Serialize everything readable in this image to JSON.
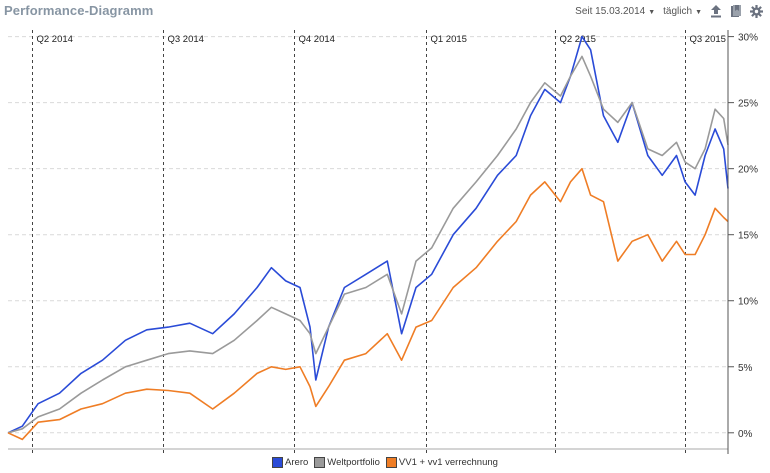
{
  "header": {
    "title": "Performance-Diagramm",
    "since_label": "Seit 15.03.2014",
    "interval_label": "täglich",
    "upload_icon": "upload-icon",
    "bookmark_icon": "bookmark-icon",
    "gear_icon": "gear-icon"
  },
  "colors": {
    "Arero": "#2a4bd7",
    "Weltportfolio": "#9a9a9a",
    "VV1 + vv1 verrechnung": "#ef7d25"
  },
  "chart_data": {
    "type": "line",
    "title": "",
    "xlabel": "",
    "ylabel": "",
    "ylim": [
      -0.01,
      0.305
    ],
    "y_ticks": [
      "0%",
      "5%",
      "10%",
      "15%",
      "20%",
      "25%",
      "30%"
    ],
    "y_tick_values": [
      0,
      0.05,
      0.1,
      0.15,
      0.2,
      0.25,
      0.3
    ],
    "x_start": "2014-03-15",
    "x_end": "2015-07-31",
    "quarter_markers": [
      {
        "label": "Q2 2014",
        "date": "2014-04-01"
      },
      {
        "label": "Q3 2014",
        "date": "2014-07-01"
      },
      {
        "label": "Q4 2014",
        "date": "2014-10-01"
      },
      {
        "label": "Q1 2015",
        "date": "2015-01-01"
      },
      {
        "label": "Q2 2015",
        "date": "2015-04-01"
      },
      {
        "label": "Q3 2015",
        "date": "2015-07-01"
      }
    ],
    "legend_position": "bottom-center",
    "series": [
      {
        "name": "Arero",
        "color": "#2a4bd7",
        "points": [
          [
            "2014-03-15",
            0.0
          ],
          [
            "2014-03-25",
            0.005
          ],
          [
            "2014-04-05",
            0.022
          ],
          [
            "2014-04-20",
            0.03
          ],
          [
            "2014-05-05",
            0.045
          ],
          [
            "2014-05-20",
            0.055
          ],
          [
            "2014-06-05",
            0.07
          ],
          [
            "2014-06-20",
            0.078
          ],
          [
            "2014-07-05",
            0.08
          ],
          [
            "2014-07-20",
            0.083
          ],
          [
            "2014-08-05",
            0.075
          ],
          [
            "2014-08-20",
            0.09
          ],
          [
            "2014-09-05",
            0.11
          ],
          [
            "2014-09-15",
            0.125
          ],
          [
            "2014-09-25",
            0.115
          ],
          [
            "2014-10-05",
            0.11
          ],
          [
            "2014-10-12",
            0.08
          ],
          [
            "2014-10-16",
            0.04
          ],
          [
            "2014-10-25",
            0.08
          ],
          [
            "2014-11-05",
            0.11
          ],
          [
            "2014-11-20",
            0.12
          ],
          [
            "2014-12-05",
            0.13
          ],
          [
            "2014-12-15",
            0.075
          ],
          [
            "2014-12-25",
            0.11
          ],
          [
            "2015-01-05",
            0.12
          ],
          [
            "2015-01-20",
            0.15
          ],
          [
            "2015-02-05",
            0.17
          ],
          [
            "2015-02-20",
            0.195
          ],
          [
            "2015-03-05",
            0.21
          ],
          [
            "2015-03-15",
            0.24
          ],
          [
            "2015-03-25",
            0.26
          ],
          [
            "2015-04-05",
            0.25
          ],
          [
            "2015-04-12",
            0.27
          ],
          [
            "2015-04-20",
            0.3
          ],
          [
            "2015-04-26",
            0.29
          ],
          [
            "2015-05-05",
            0.24
          ],
          [
            "2015-05-15",
            0.22
          ],
          [
            "2015-05-25",
            0.25
          ],
          [
            "2015-06-05",
            0.21
          ],
          [
            "2015-06-15",
            0.195
          ],
          [
            "2015-06-25",
            0.21
          ],
          [
            "2015-07-01",
            0.19
          ],
          [
            "2015-07-08",
            0.18
          ],
          [
            "2015-07-15",
            0.21
          ],
          [
            "2015-07-22",
            0.23
          ],
          [
            "2015-07-28",
            0.215
          ],
          [
            "2015-07-31",
            0.185
          ]
        ]
      },
      {
        "name": "Weltportfolio",
        "color": "#9a9a9a",
        "points": [
          [
            "2014-03-15",
            0.0
          ],
          [
            "2014-03-25",
            0.003
          ],
          [
            "2014-04-05",
            0.012
          ],
          [
            "2014-04-20",
            0.018
          ],
          [
            "2014-05-05",
            0.03
          ],
          [
            "2014-05-20",
            0.04
          ],
          [
            "2014-06-05",
            0.05
          ],
          [
            "2014-06-20",
            0.055
          ],
          [
            "2014-07-05",
            0.06
          ],
          [
            "2014-07-20",
            0.062
          ],
          [
            "2014-08-05",
            0.06
          ],
          [
            "2014-08-20",
            0.07
          ],
          [
            "2014-09-05",
            0.085
          ],
          [
            "2014-09-15",
            0.095
          ],
          [
            "2014-09-25",
            0.09
          ],
          [
            "2014-10-05",
            0.085
          ],
          [
            "2014-10-12",
            0.075
          ],
          [
            "2014-10-16",
            0.06
          ],
          [
            "2014-10-25",
            0.08
          ],
          [
            "2014-11-05",
            0.105
          ],
          [
            "2014-11-20",
            0.11
          ],
          [
            "2014-12-05",
            0.12
          ],
          [
            "2014-12-15",
            0.09
          ],
          [
            "2014-12-25",
            0.13
          ],
          [
            "2015-01-05",
            0.14
          ],
          [
            "2015-01-20",
            0.17
          ],
          [
            "2015-02-05",
            0.19
          ],
          [
            "2015-02-20",
            0.21
          ],
          [
            "2015-03-05",
            0.23
          ],
          [
            "2015-03-15",
            0.25
          ],
          [
            "2015-03-25",
            0.265
          ],
          [
            "2015-04-05",
            0.255
          ],
          [
            "2015-04-12",
            0.27
          ],
          [
            "2015-04-20",
            0.285
          ],
          [
            "2015-04-26",
            0.27
          ],
          [
            "2015-05-05",
            0.245
          ],
          [
            "2015-05-15",
            0.235
          ],
          [
            "2015-05-25",
            0.25
          ],
          [
            "2015-06-05",
            0.215
          ],
          [
            "2015-06-15",
            0.21
          ],
          [
            "2015-06-25",
            0.22
          ],
          [
            "2015-07-01",
            0.205
          ],
          [
            "2015-07-08",
            0.2
          ],
          [
            "2015-07-15",
            0.215
          ],
          [
            "2015-07-22",
            0.245
          ],
          [
            "2015-07-28",
            0.238
          ],
          [
            "2015-07-31",
            0.218
          ]
        ]
      },
      {
        "name": "VV1 + vv1 verrechnung",
        "color": "#ef7d25",
        "points": [
          [
            "2014-03-15",
            0.0
          ],
          [
            "2014-03-25",
            -0.005
          ],
          [
            "2014-04-05",
            0.008
          ],
          [
            "2014-04-20",
            0.01
          ],
          [
            "2014-05-05",
            0.018
          ],
          [
            "2014-05-20",
            0.022
          ],
          [
            "2014-06-05",
            0.03
          ],
          [
            "2014-06-20",
            0.033
          ],
          [
            "2014-07-05",
            0.032
          ],
          [
            "2014-07-20",
            0.03
          ],
          [
            "2014-08-05",
            0.018
          ],
          [
            "2014-08-20",
            0.03
          ],
          [
            "2014-09-05",
            0.045
          ],
          [
            "2014-09-15",
            0.05
          ],
          [
            "2014-09-25",
            0.048
          ],
          [
            "2014-10-05",
            0.05
          ],
          [
            "2014-10-12",
            0.035
          ],
          [
            "2014-10-16",
            0.02
          ],
          [
            "2014-10-25",
            0.035
          ],
          [
            "2014-11-05",
            0.055
          ],
          [
            "2014-11-20",
            0.06
          ],
          [
            "2014-12-05",
            0.075
          ],
          [
            "2014-12-15",
            0.055
          ],
          [
            "2014-12-25",
            0.08
          ],
          [
            "2015-01-05",
            0.085
          ],
          [
            "2015-01-20",
            0.11
          ],
          [
            "2015-02-05",
            0.125
          ],
          [
            "2015-02-20",
            0.145
          ],
          [
            "2015-03-05",
            0.16
          ],
          [
            "2015-03-15",
            0.18
          ],
          [
            "2015-03-25",
            0.19
          ],
          [
            "2015-04-05",
            0.175
          ],
          [
            "2015-04-12",
            0.19
          ],
          [
            "2015-04-20",
            0.2
          ],
          [
            "2015-04-26",
            0.18
          ],
          [
            "2015-05-05",
            0.175
          ],
          [
            "2015-05-15",
            0.13
          ],
          [
            "2015-05-25",
            0.145
          ],
          [
            "2015-06-05",
            0.15
          ],
          [
            "2015-06-15",
            0.13
          ],
          [
            "2015-06-25",
            0.145
          ],
          [
            "2015-07-01",
            0.135
          ],
          [
            "2015-07-08",
            0.135
          ],
          [
            "2015-07-15",
            0.15
          ],
          [
            "2015-07-22",
            0.17
          ],
          [
            "2015-07-28",
            0.163
          ],
          [
            "2015-07-31",
            0.16
          ]
        ]
      }
    ]
  }
}
